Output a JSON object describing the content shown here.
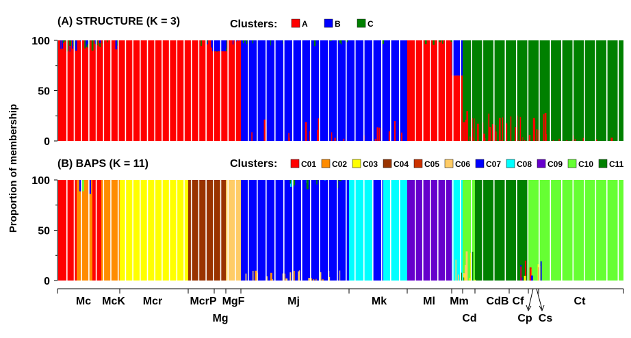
{
  "y_axis_label": "Proportion of membership",
  "colors": {
    "A": "#ff0000",
    "B": "#0000ff",
    "C": "#008000",
    "C01": "#ff0000",
    "C02": "#ff8c00",
    "C03": "#ffff00",
    "C04": "#993300",
    "C05": "#cc3300",
    "C06": "#ffcc66",
    "C07": "#0000ff",
    "C08": "#00ffff",
    "C09": "#6600cc",
    "C10": "#66ff33",
    "C11": "#008000"
  },
  "panels": [
    {
      "id": "A",
      "title": "(A) STRUCTURE (K = 3)",
      "legend_title": "Clusters:",
      "clusters": [
        "A",
        "B",
        "C"
      ],
      "y_ticks": [
        "100",
        "50",
        "0"
      ]
    },
    {
      "id": "B",
      "title": "(B) BAPS (K = 11)",
      "legend_title": "Clusters:",
      "clusters": [
        "C01",
        "C02",
        "C03",
        "C04",
        "C05",
        "C06",
        "C07",
        "C08",
        "C09",
        "C10",
        "C11"
      ],
      "y_ticks": [
        "100",
        "50",
        "0"
      ]
    }
  ],
  "chart_data": [
    {
      "type": "bar",
      "stacked": true,
      "title": "(A) STRUCTURE (K = 3)",
      "ylabel": "Proportion of membership",
      "ylim": [
        0,
        100
      ],
      "series": [
        {
          "name": "A"
        },
        {
          "name": "B"
        },
        {
          "name": "C"
        }
      ],
      "groups": [
        {
          "label": "Mc",
          "dominant": "A",
          "mix": {
            "A": 97,
            "B": 1,
            "C": 2
          }
        },
        {
          "label": "McK",
          "dominant": "A",
          "mix": {
            "A": 98,
            "B": 0,
            "C": 2
          }
        },
        {
          "label": "Mcr",
          "dominant": "A",
          "mix": {
            "A": 99,
            "B": 0,
            "C": 1
          }
        },
        {
          "label": "McrP",
          "dominant": "A",
          "mix": {
            "A": 97,
            "B": 1,
            "C": 2
          }
        },
        {
          "label": "Mg",
          "dominant": "A",
          "mix": {
            "A": 90,
            "B": 9,
            "C": 1
          }
        },
        {
          "label": "MgF",
          "dominant": "A",
          "mix": {
            "A": 96,
            "B": 2,
            "C": 2
          }
        },
        {
          "label": "Mj",
          "dominant": "B",
          "mix": {
            "A": 3,
            "B": 95,
            "C": 2
          }
        },
        {
          "label": "Mk",
          "dominant": "B",
          "mix": {
            "A": 2,
            "B": 97,
            "C": 1
          }
        },
        {
          "label": "Ml",
          "dominant": "A",
          "mix": {
            "A": 99,
            "B": 1,
            "C": 0
          }
        },
        {
          "label": "Mm",
          "dominant": "A",
          "mix": {
            "A": 80,
            "B": 12,
            "C": 8
          }
        },
        {
          "label": "Cd",
          "dominant": "C",
          "mix": {
            "A": 12,
            "B": 0,
            "C": 88
          }
        },
        {
          "label": "CdB",
          "dominant": "C",
          "mix": {
            "A": 5,
            "B": 0,
            "C": 95
          }
        },
        {
          "label": "Cf",
          "dominant": "C",
          "mix": {
            "A": 8,
            "B": 0,
            "C": 92
          }
        },
        {
          "label": "Cp",
          "dominant": "C",
          "mix": {
            "A": 12,
            "B": 0,
            "C": 88
          }
        },
        {
          "label": "Cs",
          "dominant": "C",
          "mix": {
            "A": 20,
            "B": 0,
            "C": 80
          }
        },
        {
          "label": "Ct",
          "dominant": "C",
          "mix": {
            "A": 3,
            "B": 0,
            "C": 97
          }
        }
      ]
    },
    {
      "type": "bar",
      "stacked": true,
      "title": "(B) BAPS (K = 11)",
      "ylabel": "Proportion of membership",
      "ylim": [
        0,
        100
      ],
      "series": [
        {
          "name": "C01"
        },
        {
          "name": "C02"
        },
        {
          "name": "C03"
        },
        {
          "name": "C04"
        },
        {
          "name": "C05"
        },
        {
          "name": "C06"
        },
        {
          "name": "C07"
        },
        {
          "name": "C08"
        },
        {
          "name": "C09"
        },
        {
          "name": "C10"
        },
        {
          "name": "C11"
        }
      ],
      "groups": [
        {
          "label": "Mc",
          "dominant": "C01/C02"
        },
        {
          "label": "McK",
          "dominant": "C02"
        },
        {
          "label": "Mcr",
          "dominant": "C03"
        },
        {
          "label": "McrP",
          "dominant": "C04"
        },
        {
          "label": "Mg",
          "dominant": "C04"
        },
        {
          "label": "MgF",
          "dominant": "C06"
        },
        {
          "label": "Mj",
          "dominant": "C07"
        },
        {
          "label": "Mk",
          "dominant": "C08/C07"
        },
        {
          "label": "Ml",
          "dominant": "C09"
        },
        {
          "label": "Mm",
          "dominant": "C08"
        },
        {
          "label": "Cd",
          "dominant": "C10"
        },
        {
          "label": "CdB",
          "dominant": "C11"
        },
        {
          "label": "Cf",
          "dominant": "C11"
        },
        {
          "label": "Cp",
          "dominant": "C10"
        },
        {
          "label": "Cs",
          "dominant": "C11"
        },
        {
          "label": "Ct",
          "dominant": "C10"
        }
      ]
    }
  ],
  "groups_row1": [
    "Mc",
    "McK",
    "Mcr",
    "McrP",
    "MgF",
    "Mj",
    "Mk",
    "Ml",
    "Mm",
    "CdB",
    "Cf",
    "Ct"
  ],
  "groups_row2": [
    "Mg",
    "Cd",
    "Cp",
    "Cs"
  ]
}
